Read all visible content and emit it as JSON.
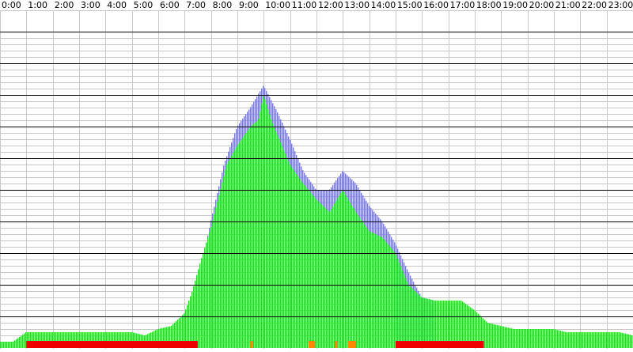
{
  "chart_data": {
    "type": "area",
    "title": "",
    "xlabel": "",
    "ylabel": "",
    "hour_labels": [
      "0:00",
      "1:00",
      "2:00",
      "3:00",
      "4:00",
      "5:00",
      "6:00",
      "7:00",
      "8:00",
      "9:00",
      "10:00",
      "11:00",
      "12:00",
      "13:00",
      "14:00",
      "15:00",
      "16:00",
      "17:00",
      "18:00",
      "19:00",
      "20:00",
      "21:00",
      "22:00",
      "23:00"
    ],
    "x_range_hours": [
      0,
      24
    ],
    "y_range": [
      0,
      100
    ],
    "major_gridlines": [
      10,
      20,
      30,
      40,
      50,
      60,
      70,
      80,
      90,
      100
    ],
    "grid": true,
    "colors": {
      "green": "#00ee00",
      "blue": "#7777ee",
      "red": "#ee0000",
      "orange": "#ff8800",
      "grid_minor": "#c8c8c8",
      "grid_major": "#000000"
    },
    "series": [
      {
        "color": "green",
        "points_hour_value": [
          [
            0,
            2
          ],
          [
            0.5,
            2
          ],
          [
            1,
            5
          ],
          [
            2,
            5
          ],
          [
            3,
            5
          ],
          [
            4,
            5
          ],
          [
            5,
            5
          ],
          [
            5.5,
            4
          ],
          [
            6,
            6
          ],
          [
            6.5,
            7
          ],
          [
            7,
            11
          ],
          [
            7.3,
            18
          ],
          [
            7.6,
            27
          ],
          [
            8,
            38
          ],
          [
            8.3,
            48
          ],
          [
            8.6,
            58
          ],
          [
            9,
            64
          ],
          [
            9.5,
            70
          ],
          [
            9.8,
            72
          ],
          [
            10,
            80
          ],
          [
            10.3,
            72
          ],
          [
            10.6,
            66
          ],
          [
            11,
            58
          ],
          [
            11.5,
            52
          ],
          [
            12,
            47
          ],
          [
            12.5,
            43
          ],
          [
            13,
            50
          ],
          [
            13.5,
            43
          ],
          [
            14,
            37
          ],
          [
            14.5,
            35
          ],
          [
            15,
            30
          ],
          [
            15.5,
            20
          ],
          [
            16,
            16
          ],
          [
            16.5,
            15
          ],
          [
            17,
            15
          ],
          [
            17.5,
            15
          ],
          [
            18,
            12
          ],
          [
            18.5,
            8
          ],
          [
            19,
            7
          ],
          [
            19.5,
            6
          ],
          [
            20,
            6
          ],
          [
            20.5,
            6
          ],
          [
            21,
            6
          ],
          [
            21.5,
            5
          ],
          [
            22,
            5
          ],
          [
            22.5,
            5
          ],
          [
            23,
            5
          ],
          [
            23.5,
            5
          ],
          [
            24,
            4
          ]
        ]
      },
      {
        "color": "blue",
        "points_hour_value": [
          [
            7.2,
            12
          ],
          [
            7.5,
            20
          ],
          [
            8,
            40
          ],
          [
            8.5,
            58
          ],
          [
            9,
            70
          ],
          [
            9.5,
            76
          ],
          [
            10,
            83
          ],
          [
            10.5,
            75
          ],
          [
            11,
            66
          ],
          [
            11.5,
            56
          ],
          [
            12,
            50
          ],
          [
            12.5,
            50
          ],
          [
            13,
            56
          ],
          [
            13.5,
            52
          ],
          [
            14,
            45
          ],
          [
            14.5,
            40
          ],
          [
            15,
            33
          ],
          [
            15.5,
            24
          ],
          [
            16,
            16
          ],
          [
            16.5,
            15
          ]
        ]
      }
    ],
    "status_strip": [
      {
        "from_hour": 1,
        "to_hour": 7.5,
        "color": "red"
      },
      {
        "from_hour": 9.5,
        "to_hour": 9.6,
        "color": "orange"
      },
      {
        "from_hour": 11.7,
        "to_hour": 11.95,
        "color": "orange"
      },
      {
        "from_hour": 12.7,
        "to_hour": 12.8,
        "color": "orange"
      },
      {
        "from_hour": 13.2,
        "to_hour": 13.5,
        "color": "orange"
      },
      {
        "from_hour": 15,
        "to_hour": 18.35,
        "color": "red"
      },
      {
        "from_hour": 16.6,
        "to_hour": 16.65,
        "color": "red"
      }
    ]
  }
}
